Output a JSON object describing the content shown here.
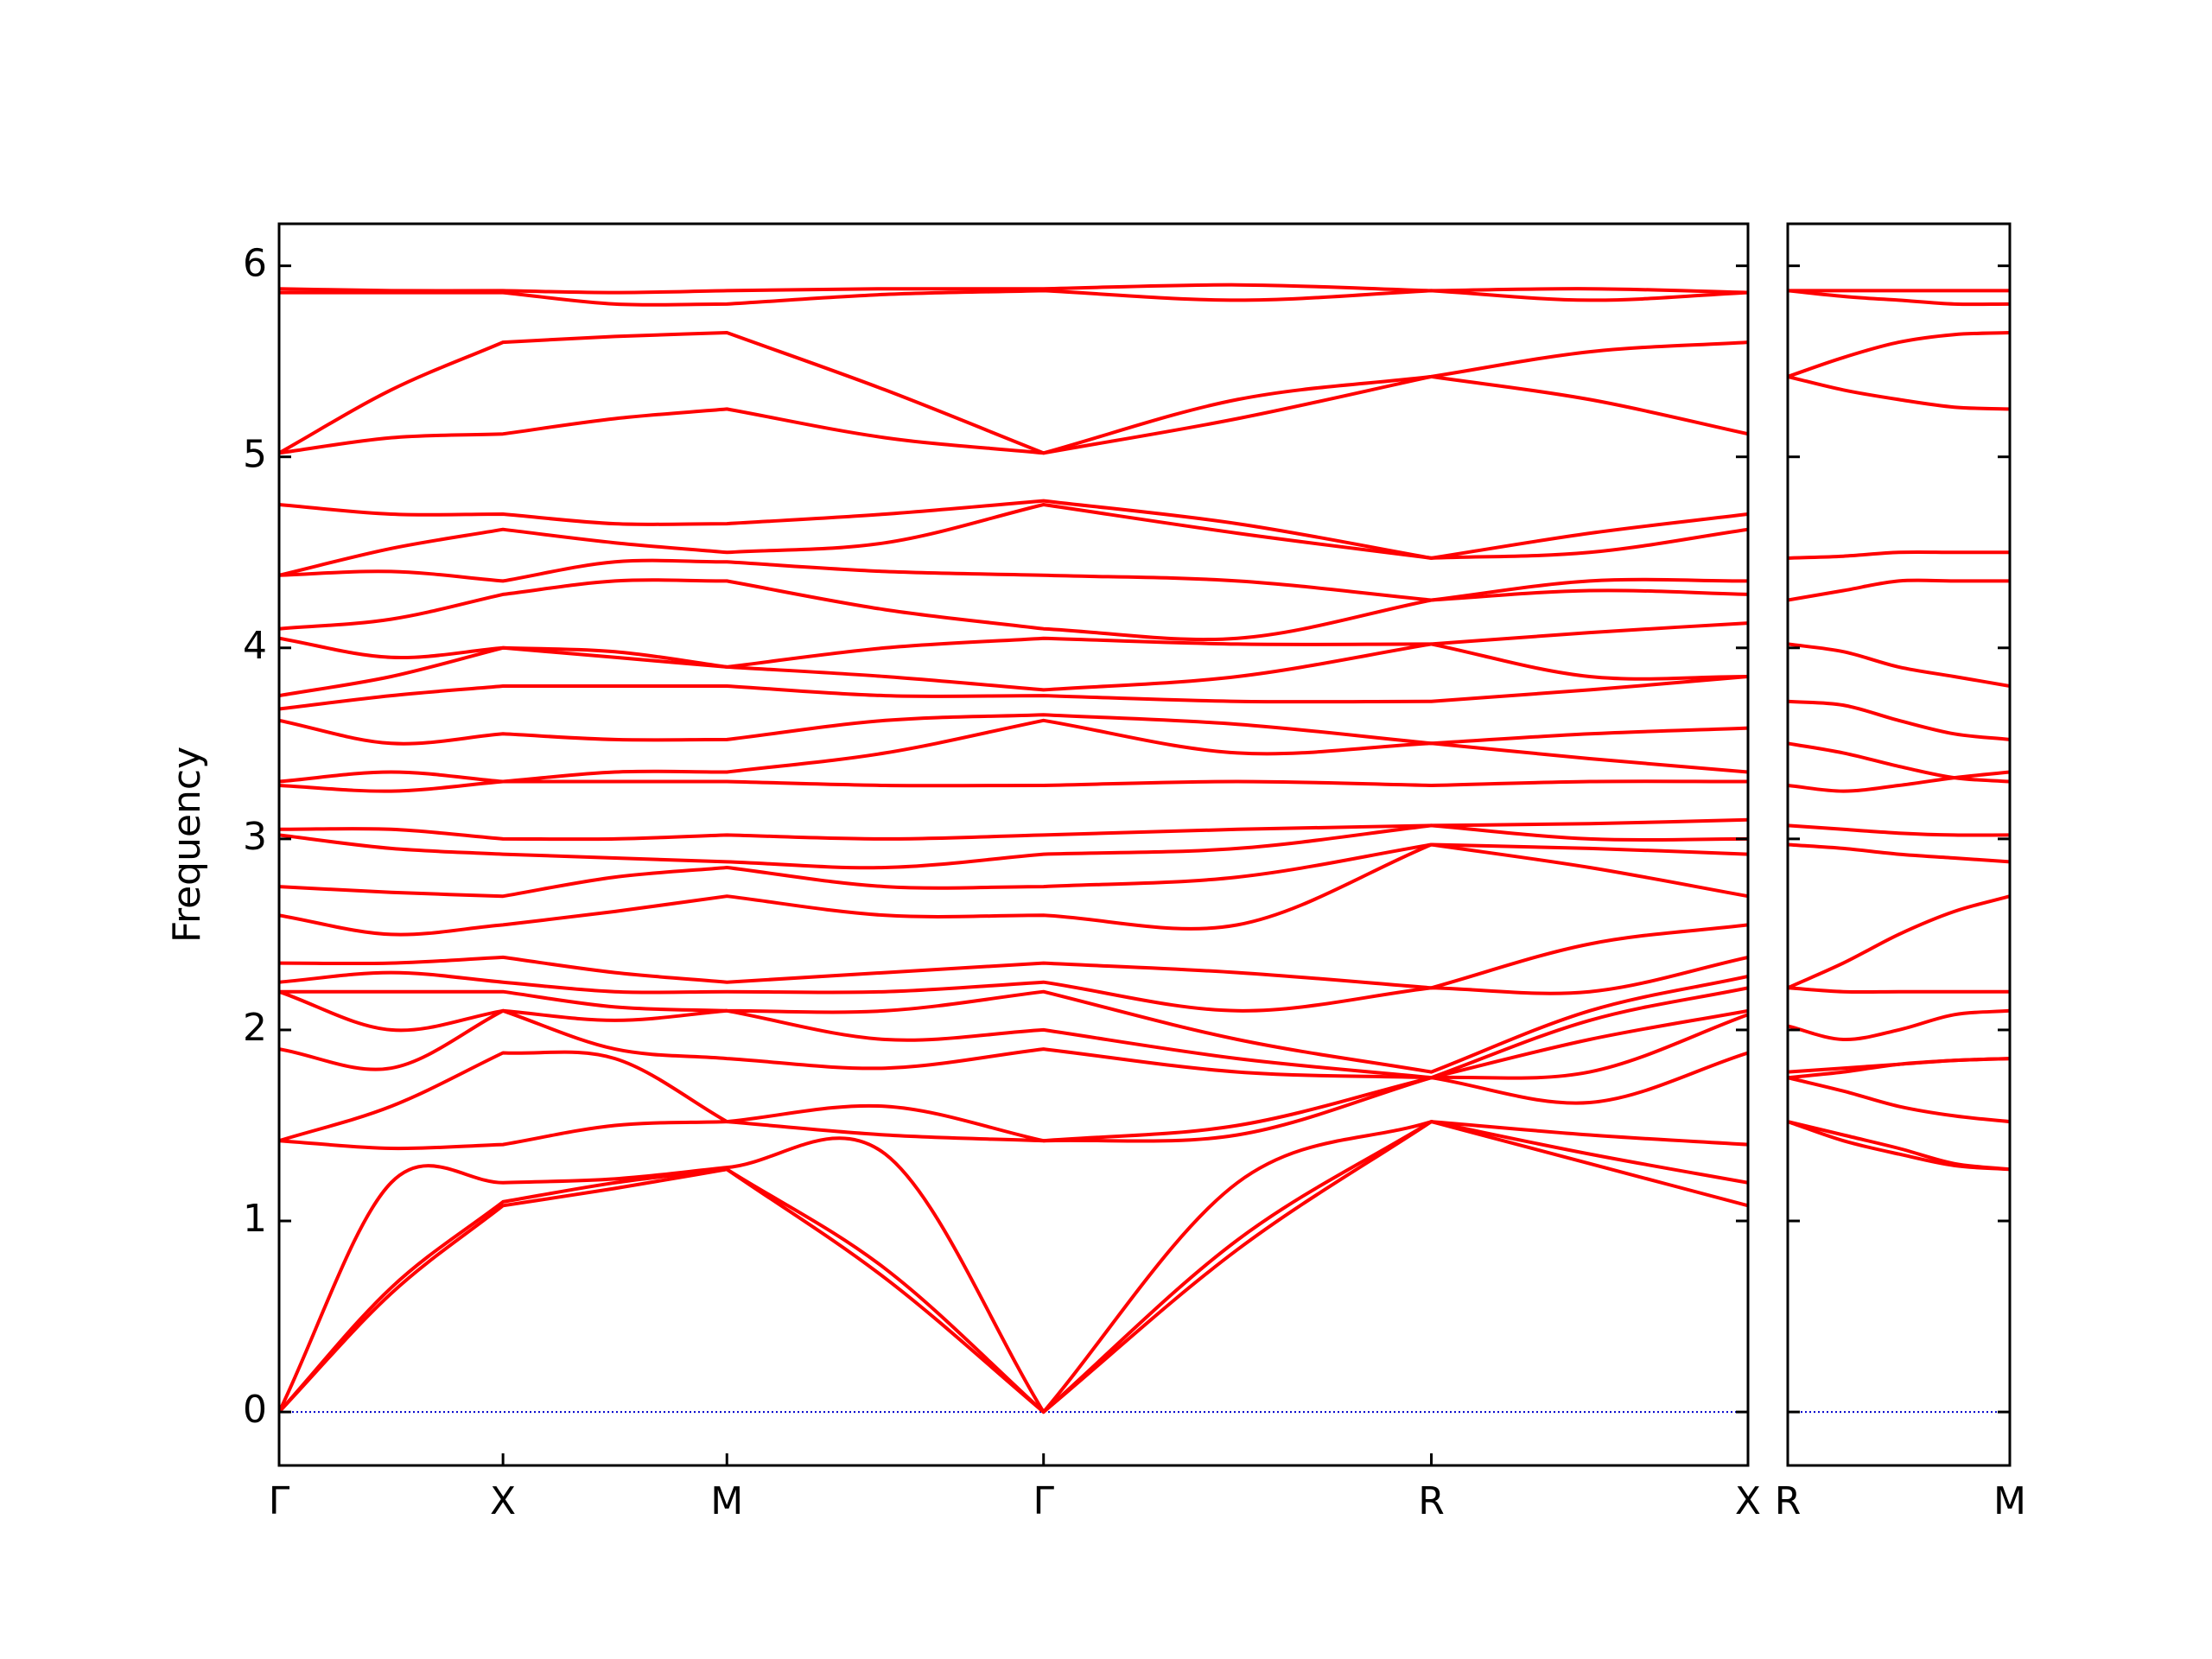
{
  "chart_data": [
    {
      "type": "line",
      "ylabel": "Frequency",
      "color": "#ff0000",
      "zero_line": "#0000cc",
      "ylim": [
        -0.28,
        6.22
      ],
      "yticks": [
        0,
        1,
        2,
        3,
        4,
        5,
        6
      ],
      "xlim": [
        0,
        3.2802
      ],
      "xticks": [
        {
          "value": 0,
          "label": "Γ"
        },
        {
          "value": 0.5,
          "label": "X"
        },
        {
          "value": 1.0,
          "label": "M"
        },
        {
          "value": 1.7071,
          "label": "Γ"
        },
        {
          "value": 2.5731,
          "label": "R"
        },
        {
          "value": 3.2802,
          "label": "X"
        }
      ],
      "x": [
        0,
        0.25,
        0.5,
        0.75,
        1.0,
        1.3536,
        1.7071,
        2.1401,
        2.5731,
        2.9267,
        3.2802
      ],
      "series": [
        {
          "values": [
            0,
            0.62,
            1.08,
            1.17,
            1.27,
            0.7,
            0,
            0.85,
            1.52,
            1.3,
            1.08
          ]
        },
        {
          "values": [
            0,
            0.65,
            1.1,
            1.2,
            1.27,
            0.75,
            0,
            0.9,
            1.52,
            1.35,
            1.2
          ]
        },
        {
          "values": [
            0,
            1.2,
            1.2,
            1.22,
            1.28,
            1.35,
            0,
            1.2,
            1.52,
            1.45,
            1.4
          ]
        },
        {
          "values": [
            1.42,
            1.38,
            1.4,
            1.5,
            1.52,
            1.6,
            1.42,
            1.45,
            1.75,
            1.62,
            1.88
          ]
        },
        {
          "values": [
            1.42,
            1.6,
            1.88,
            1.85,
            1.52,
            1.45,
            1.42,
            1.5,
            1.75,
            1.78,
            2.08
          ]
        },
        {
          "values": [
            1.9,
            1.8,
            2.1,
            1.9,
            1.85,
            1.8,
            1.9,
            1.78,
            1.75,
            1.95,
            2.1
          ]
        },
        {
          "values": [
            2.2,
            2.0,
            2.1,
            2.05,
            2.1,
            1.95,
            2.0,
            1.85,
            1.75,
            2.05,
            2.22
          ]
        },
        {
          "values": [
            2.2,
            2.2,
            2.2,
            2.12,
            2.1,
            2.1,
            2.2,
            1.95,
            1.78,
            2.1,
            2.28
          ]
        },
        {
          "values": [
            2.25,
            2.3,
            2.25,
            2.2,
            2.2,
            2.2,
            2.25,
            2.1,
            2.22,
            2.2,
            2.38
          ]
        },
        {
          "values": [
            2.35,
            2.35,
            2.38,
            2.3,
            2.25,
            2.3,
            2.35,
            2.3,
            2.22,
            2.45,
            2.55
          ]
        },
        {
          "values": [
            2.6,
            2.5,
            2.55,
            2.62,
            2.7,
            2.6,
            2.6,
            2.55,
            2.97,
            2.85,
            2.7
          ]
        },
        {
          "values": [
            2.75,
            2.72,
            2.7,
            2.8,
            2.85,
            2.75,
            2.75,
            2.8,
            2.97,
            2.95,
            2.92
          ]
        },
        {
          "values": [
            3.02,
            2.95,
            2.92,
            2.9,
            2.88,
            2.85,
            2.92,
            2.95,
            3.07,
            3.0,
            3.0
          ]
        },
        {
          "values": [
            3.05,
            3.05,
            3.0,
            3.0,
            3.02,
            3.0,
            3.02,
            3.05,
            3.07,
            3.08,
            3.1
          ]
        },
        {
          "values": [
            3.28,
            3.25,
            3.3,
            3.3,
            3.3,
            3.28,
            3.28,
            3.3,
            3.28,
            3.3,
            3.3
          ]
        },
        {
          "values": [
            3.3,
            3.35,
            3.3,
            3.35,
            3.35,
            3.45,
            3.62,
            3.45,
            3.5,
            3.42,
            3.35
          ]
        },
        {
          "values": [
            3.62,
            3.5,
            3.55,
            3.52,
            3.52,
            3.62,
            3.65,
            3.6,
            3.5,
            3.55,
            3.58
          ]
        },
        {
          "values": [
            3.68,
            3.75,
            3.8,
            3.8,
            3.8,
            3.75,
            3.75,
            3.72,
            3.72,
            3.78,
            3.85
          ]
        },
        {
          "values": [
            3.75,
            3.85,
            4.0,
            3.95,
            3.9,
            3.85,
            3.78,
            3.85,
            4.02,
            3.85,
            3.85
          ]
        },
        {
          "values": [
            4.05,
            3.95,
            4.0,
            3.98,
            3.9,
            4.0,
            4.05,
            4.02,
            4.02,
            4.08,
            4.13
          ]
        },
        {
          "values": [
            4.1,
            4.15,
            4.28,
            4.35,
            4.35,
            4.2,
            4.1,
            4.05,
            4.25,
            4.3,
            4.28
          ]
        },
        {
          "values": [
            4.38,
            4.4,
            4.35,
            4.45,
            4.45,
            4.4,
            4.38,
            4.35,
            4.25,
            4.35,
            4.35
          ]
        },
        {
          "values": [
            4.38,
            4.52,
            4.62,
            4.55,
            4.5,
            4.55,
            4.75,
            4.6,
            4.47,
            4.5,
            4.62
          ]
        },
        {
          "values": [
            4.75,
            4.7,
            4.7,
            4.65,
            4.65,
            4.7,
            4.77,
            4.65,
            4.47,
            4.6,
            4.7
          ]
        },
        {
          "values": [
            5.02,
            5.1,
            5.12,
            5.2,
            5.25,
            5.1,
            5.02,
            5.2,
            5.42,
            5.3,
            5.12
          ]
        },
        {
          "values": [
            5.02,
            5.35,
            5.6,
            5.63,
            5.65,
            5.35,
            5.02,
            5.3,
            5.42,
            5.55,
            5.6
          ]
        },
        {
          "values": [
            5.86,
            5.86,
            5.86,
            5.8,
            5.8,
            5.85,
            5.87,
            5.82,
            5.87,
            5.82,
            5.86
          ]
        },
        {
          "values": [
            5.88,
            5.87,
            5.87,
            5.86,
            5.87,
            5.88,
            5.88,
            5.9,
            5.87,
            5.88,
            5.86
          ]
        }
      ]
    },
    {
      "type": "line",
      "color": "#ff0000",
      "zero_line": "#0000cc",
      "ytick_labels": false,
      "ylim": [
        -0.28,
        6.22
      ],
      "yticks": [
        0,
        1,
        2,
        3,
        4,
        5,
        6
      ],
      "xlim": [
        0,
        0.7071
      ],
      "xticks": [
        {
          "value": 0,
          "label": "R"
        },
        {
          "value": 0.7071,
          "label": "M"
        }
      ],
      "x": [
        0,
        0.1768,
        0.3536,
        0.5303,
        0.7071
      ],
      "series": [
        {
          "values": [
            1.52,
            1.42,
            1.35,
            1.29,
            1.27
          ]
        },
        {
          "values": [
            1.52,
            1.45,
            1.38,
            1.3,
            1.27
          ]
        },
        {
          "values": [
            1.75,
            1.68,
            1.6,
            1.55,
            1.52
          ]
        },
        {
          "values": [
            1.75,
            1.78,
            1.82,
            1.84,
            1.85
          ]
        },
        {
          "values": [
            1.78,
            1.8,
            1.82,
            1.84,
            1.85
          ]
        },
        {
          "values": [
            2.02,
            1.95,
            2.0,
            2.08,
            2.1
          ]
        },
        {
          "values": [
            2.22,
            2.2,
            2.2,
            2.2,
            2.2
          ]
        },
        {
          "values": [
            2.22,
            2.35,
            2.5,
            2.62,
            2.7
          ]
        },
        {
          "values": [
            2.97,
            2.95,
            2.92,
            2.9,
            2.88
          ]
        },
        {
          "values": [
            3.07,
            3.05,
            3.03,
            3.02,
            3.02
          ]
        },
        {
          "values": [
            3.28,
            3.25,
            3.28,
            3.32,
            3.35
          ]
        },
        {
          "values": [
            3.5,
            3.45,
            3.38,
            3.32,
            3.3
          ]
        },
        {
          "values": [
            3.72,
            3.7,
            3.62,
            3.55,
            3.52
          ]
        },
        {
          "values": [
            4.02,
            3.98,
            3.9,
            3.85,
            3.8
          ]
        },
        {
          "values": [
            4.25,
            4.3,
            4.35,
            4.35,
            4.35
          ]
        },
        {
          "values": [
            4.47,
            4.48,
            4.5,
            4.5,
            4.5
          ]
        },
        {
          "values": [
            5.42,
            5.35,
            5.3,
            5.26,
            5.25
          ]
        },
        {
          "values": [
            5.42,
            5.52,
            5.6,
            5.64,
            5.65
          ]
        },
        {
          "values": [
            5.87,
            5.84,
            5.82,
            5.8,
            5.8
          ]
        },
        {
          "values": [
            5.87,
            5.87,
            5.87,
            5.87,
            5.87
          ]
        }
      ]
    }
  ]
}
